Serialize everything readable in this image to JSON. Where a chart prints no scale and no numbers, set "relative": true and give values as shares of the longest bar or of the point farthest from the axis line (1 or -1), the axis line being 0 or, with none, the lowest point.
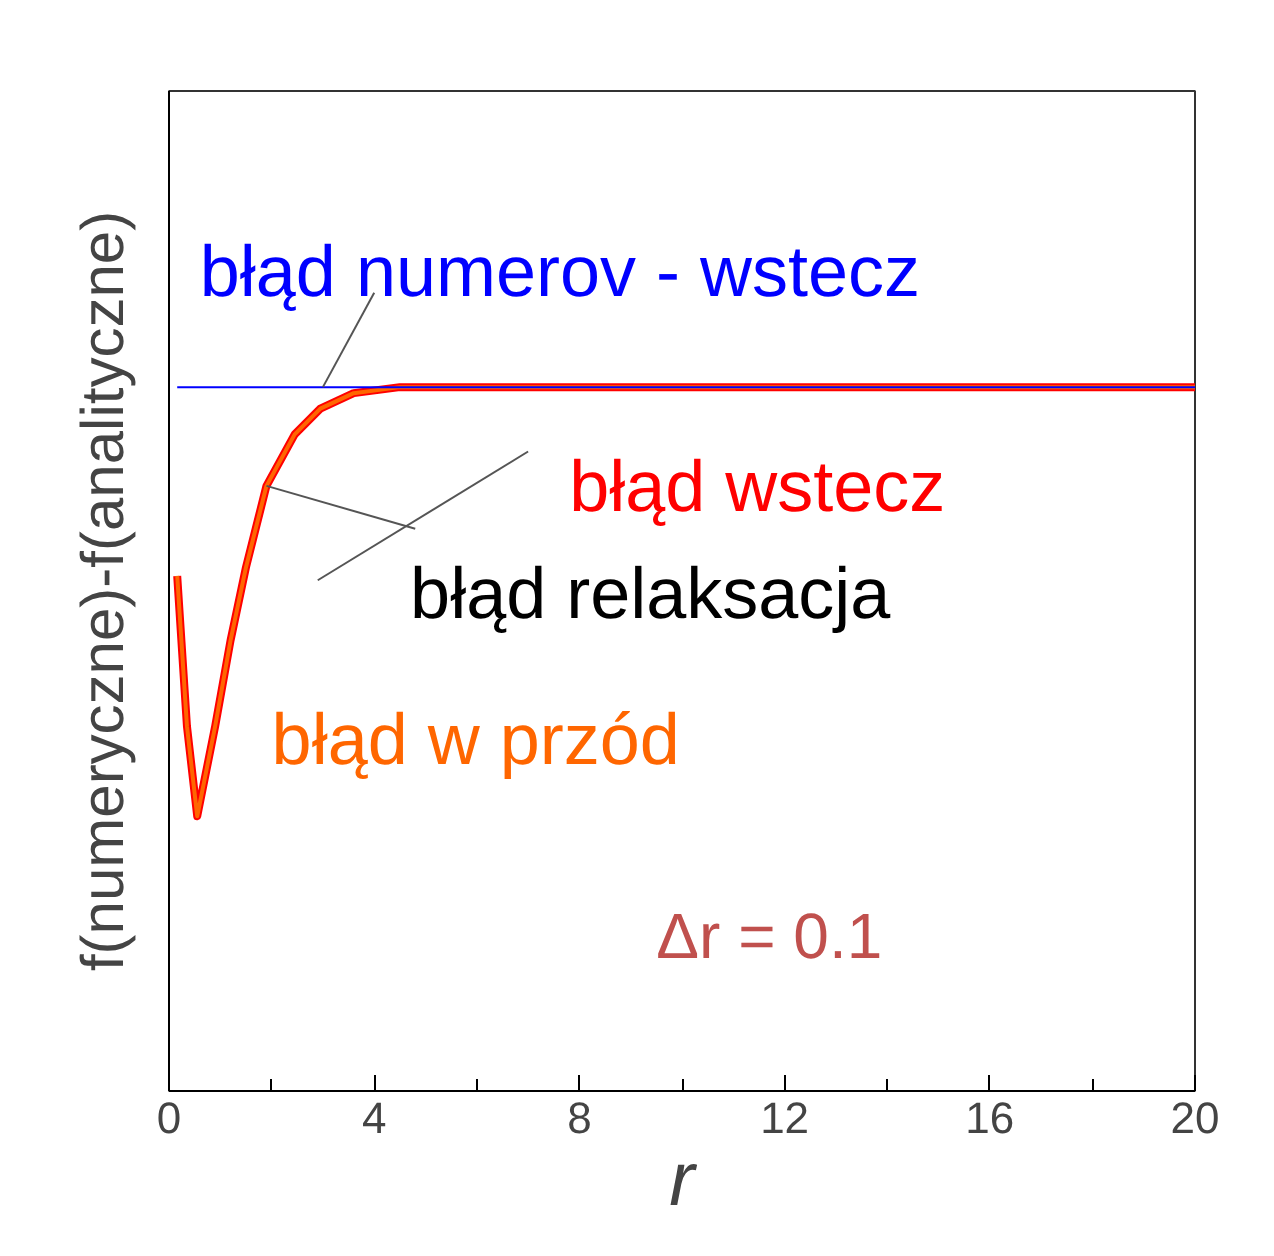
{
  "chart_data": {
    "type": "line",
    "relative": true,
    "xlabel": "r",
    "ylabel": "f(numeryczne)-f(analityczne)",
    "x": [
      0.16,
      0.35,
      0.55,
      0.9,
      1.2,
      1.5,
      1.9,
      2.45,
      2.95,
      3.6,
      4.5,
      20
    ],
    "xlim": [
      0,
      20
    ],
    "xticks": [
      0,
      4,
      8,
      12,
      16,
      20
    ],
    "series": [
      {
        "name": "błąd numerov - wstecz",
        "color": "#0000ff",
        "values": [
          0,
          0,
          0,
          0,
          0,
          0,
          0,
          0,
          0,
          0,
          0,
          0
        ]
      },
      {
        "name": "błąd wstecz",
        "color": "#ff0000",
        "values": [
          -0.44,
          -0.79,
          -1,
          -0.79,
          -0.59,
          -0.42,
          -0.23,
          -0.11,
          -0.05,
          -0.014,
          0,
          0
        ]
      },
      {
        "name": "błąd relaksacja",
        "color": "#000000",
        "values": [
          null,
          null,
          null,
          null,
          null,
          null,
          null,
          null,
          null,
          null,
          null,
          null
        ]
      },
      {
        "name": "błąd w przód",
        "color": "#ff6600",
        "values": [
          -0.44,
          -0.79,
          -1,
          -0.79,
          -0.59,
          -0.42,
          -0.23,
          -0.11,
          -0.05,
          -0.014,
          0,
          0
        ]
      }
    ],
    "annotations": [
      "Δr = 0.1"
    ],
    "grid": false,
    "marker": "none",
    "line_style": "solid"
  }
}
